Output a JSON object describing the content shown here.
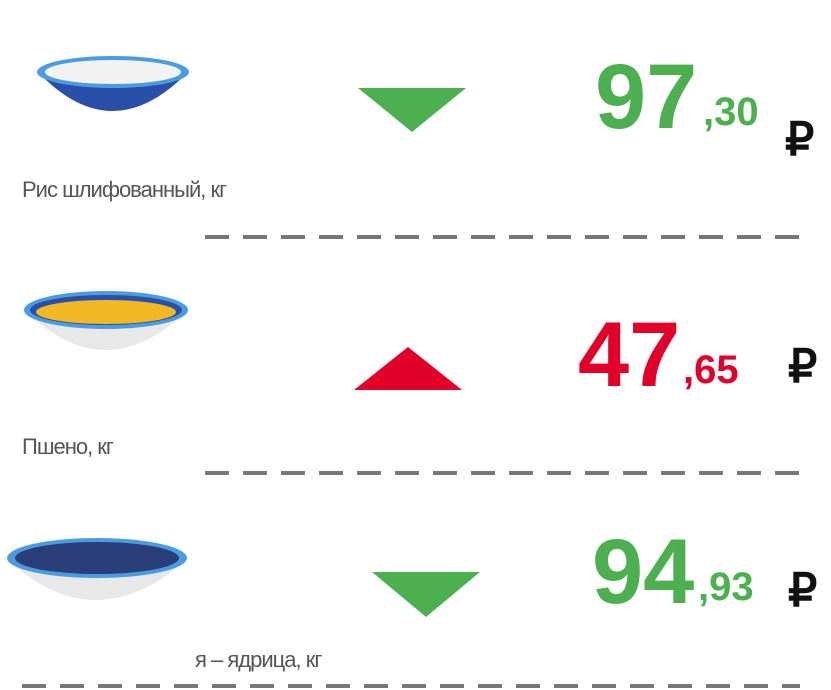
{
  "items": [
    {
      "label": "Рис шлифованный, кг",
      "price_int": "97",
      "price_frac": ",30",
      "currency": "₽",
      "direction": "down",
      "color": "#4caf50"
    },
    {
      "label": "Пшено, кг",
      "price_int": "47",
      "price_frac": ",65",
      "currency": "₽",
      "direction": "up",
      "color": "#e0002a"
    },
    {
      "label": "я – ядрица, кг",
      "price_int": "94",
      "price_frac": ",93",
      "currency": "₽",
      "direction": "down",
      "color": "#4caf50"
    }
  ]
}
